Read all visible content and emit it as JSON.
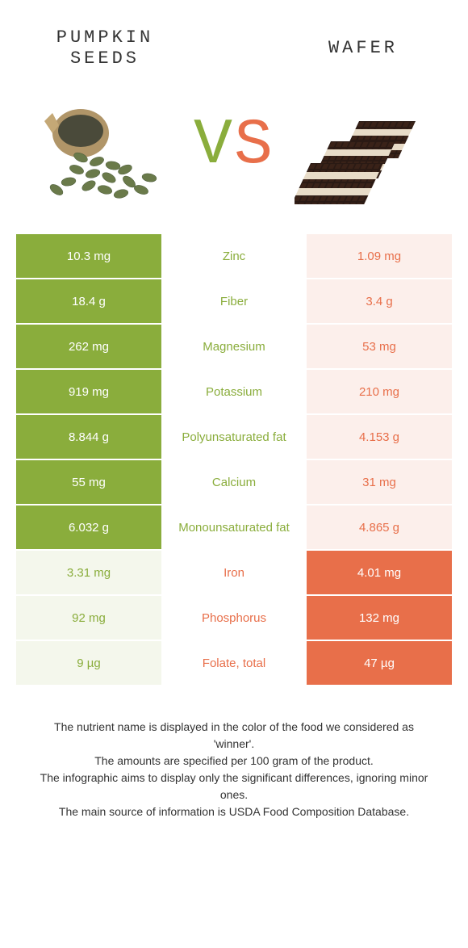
{
  "colors": {
    "left": "#8aad3c",
    "right": "#e86f4a",
    "left_faded": "#f4f7ec",
    "right_faded": "#fcefeb",
    "text_dark": "#333333"
  },
  "header": {
    "left_title": "Pumpkin\nseeds",
    "right_title": "Wafer",
    "vs_v": "V",
    "vs_s": "S"
  },
  "rows": [
    {
      "left": "10.3 mg",
      "label": "Zinc",
      "right": "1.09 mg",
      "winner": "left"
    },
    {
      "left": "18.4 g",
      "label": "Fiber",
      "right": "3.4 g",
      "winner": "left"
    },
    {
      "left": "262 mg",
      "label": "Magnesium",
      "right": "53 mg",
      "winner": "left"
    },
    {
      "left": "919 mg",
      "label": "Potassium",
      "right": "210 mg",
      "winner": "left"
    },
    {
      "left": "8.844 g",
      "label": "Polyunsaturated fat",
      "right": "4.153 g",
      "winner": "left"
    },
    {
      "left": "55 mg",
      "label": "Calcium",
      "right": "31 mg",
      "winner": "left"
    },
    {
      "left": "6.032 g",
      "label": "Monounsaturated fat",
      "right": "4.865 g",
      "winner": "left"
    },
    {
      "left": "3.31 mg",
      "label": "Iron",
      "right": "4.01 mg",
      "winner": "right"
    },
    {
      "left": "92 mg",
      "label": "Phosphorus",
      "right": "132 mg",
      "winner": "right"
    },
    {
      "left": "9 µg",
      "label": "Folate, total",
      "right": "47 µg",
      "winner": "right"
    }
  ],
  "footnotes": [
    "The nutrient name is displayed in the color of the food we considered as 'winner'.",
    "The amounts are specified per 100 gram of the product.",
    "The infographic aims to display only the significant differences, ignoring minor ones.",
    "The main source of information is USDA Food Composition Database."
  ]
}
